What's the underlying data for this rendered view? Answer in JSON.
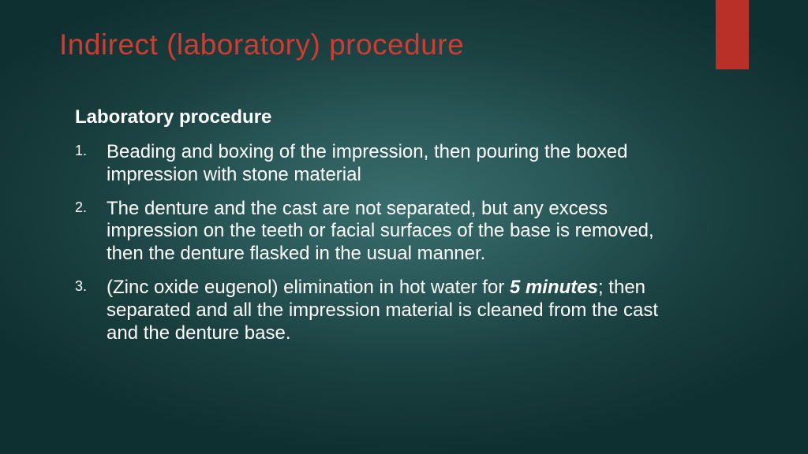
{
  "slide": {
    "title": "Indirect (laboratory) procedure",
    "title_color": "#d43a2f",
    "accent_bar_color": "#b93028",
    "subheading": "Laboratory procedure",
    "text_color": "#ffffff",
    "background_gradient_inner": "#3a6e6e",
    "background_gradient_outer": "#0f3030",
    "font_family": "Century Gothic",
    "title_fontsize": 37,
    "body_fontsize": 24,
    "steps": [
      {
        "text": "Beading and boxing of the impression, then pouring the boxed impression with stone material"
      },
      {
        "text": "The denture and the cast are not separated, but any excess impression on the teeth or facial surfaces of the base is removed, then the denture flasked in the usual manner."
      },
      {
        "prefix": "(Zinc oxide eugenol) elimination in hot water for ",
        "bold": "5 minutes",
        "suffix": "; then separated and all the impression material is cleaned from the cast and the denture base."
      }
    ]
  }
}
